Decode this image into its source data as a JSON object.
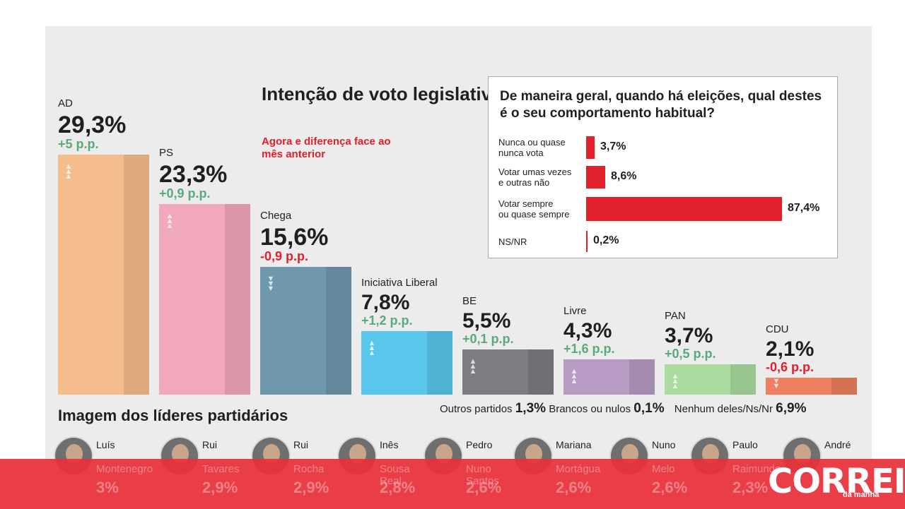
{
  "chart_data": [
    {
      "type": "bar",
      "title": "Intenção de voto legislativo",
      "subtitle": "Agora e diferença face ao mês anterior",
      "categories": [
        "AD",
        "PS",
        "Chega",
        "Iniciativa Liberal",
        "BE",
        "Livre",
        "PAN",
        "CDU"
      ],
      "values": [
        29.3,
        23.3,
        15.6,
        7.8,
        5.5,
        4.3,
        3.7,
        2.1
      ],
      "value_labels": [
        "29,3%",
        "23,3%",
        "15,6%",
        "7,8%",
        "5,5%",
        "4,3%",
        "3,7%",
        "2,1%"
      ],
      "change_labels": [
        "+5 p.p.",
        "+0,9 p.p.",
        "-0,9 p.p.",
        "+1,2 p.p.",
        "+0,1 p.p.",
        "+1,6 p.p.",
        "+0,5 p.p.",
        "-0,6 p.p."
      ],
      "change_direction": [
        "up",
        "up",
        "down",
        "up",
        "up",
        "up",
        "up",
        "down"
      ],
      "colors": [
        "#f6bd8c",
        "#f3a9bc",
        "#6f98ad",
        "#59c6ec",
        "#7b7d80",
        "#b89bc5",
        "#a9dc9e",
        "#ef7f5e"
      ]
    },
    {
      "type": "bar",
      "title": "De maneira geral, quando há eleições, qual destes é o seu comportamento habitual?",
      "categories": [
        "Nunca ou quase nunca vota",
        "Votar umas vezes e outras não",
        "Votar sempre ou quase sempre",
        "NS/NR"
      ],
      "category_lines": [
        [
          "Nunca ou quase",
          "nunca vota"
        ],
        [
          "Votar umas vezes",
          "e outras não"
        ],
        [
          "Votar sempre",
          "ou quase sempre"
        ],
        [
          "NS/NR"
        ]
      ],
      "values": [
        3.7,
        8.6,
        87.4,
        0.2
      ],
      "value_labels": [
        "3,7%",
        "8,6%",
        "87,4%",
        "0,2%"
      ],
      "color": "#e0202a"
    }
  ],
  "others": [
    {
      "label": "Outros partidos",
      "value": "1,3%"
    },
    {
      "label": "Brancos ou nulos",
      "value": "0,1%"
    },
    {
      "label": "Nenhum deles/Ns/Nr",
      "value": "6,9%"
    }
  ],
  "leaders": {
    "title": "Imagem dos líderes partidários",
    "people": [
      {
        "first": "Luís",
        "last": "Montenegro",
        "pct": "3%"
      },
      {
        "first": "Rui",
        "last": "Tavares",
        "pct": "2,9%"
      },
      {
        "first": "Rui",
        "last": "Rocha",
        "pct": "2,9%"
      },
      {
        "first": "Inês",
        "last": "Sousa",
        "last2": "Real",
        "pct": "2,8%"
      },
      {
        "first": "Pedro",
        "last": "Nuno",
        "last2": "Santos",
        "pct": "2,6%"
      },
      {
        "first": "Mariana",
        "last": "Mortágua",
        "pct": "2,6%"
      },
      {
        "first": "Nuno",
        "last": "Melo",
        "pct": "2,6%"
      },
      {
        "first": "Paulo",
        "last": "Raimundo",
        "pct": "2,3%"
      },
      {
        "first": "André",
        "last": "",
        "pct": ""
      }
    ]
  },
  "brand": {
    "logo": "CORREIO",
    "sub": "da manhã",
    "banner_color": "#e8303a"
  }
}
